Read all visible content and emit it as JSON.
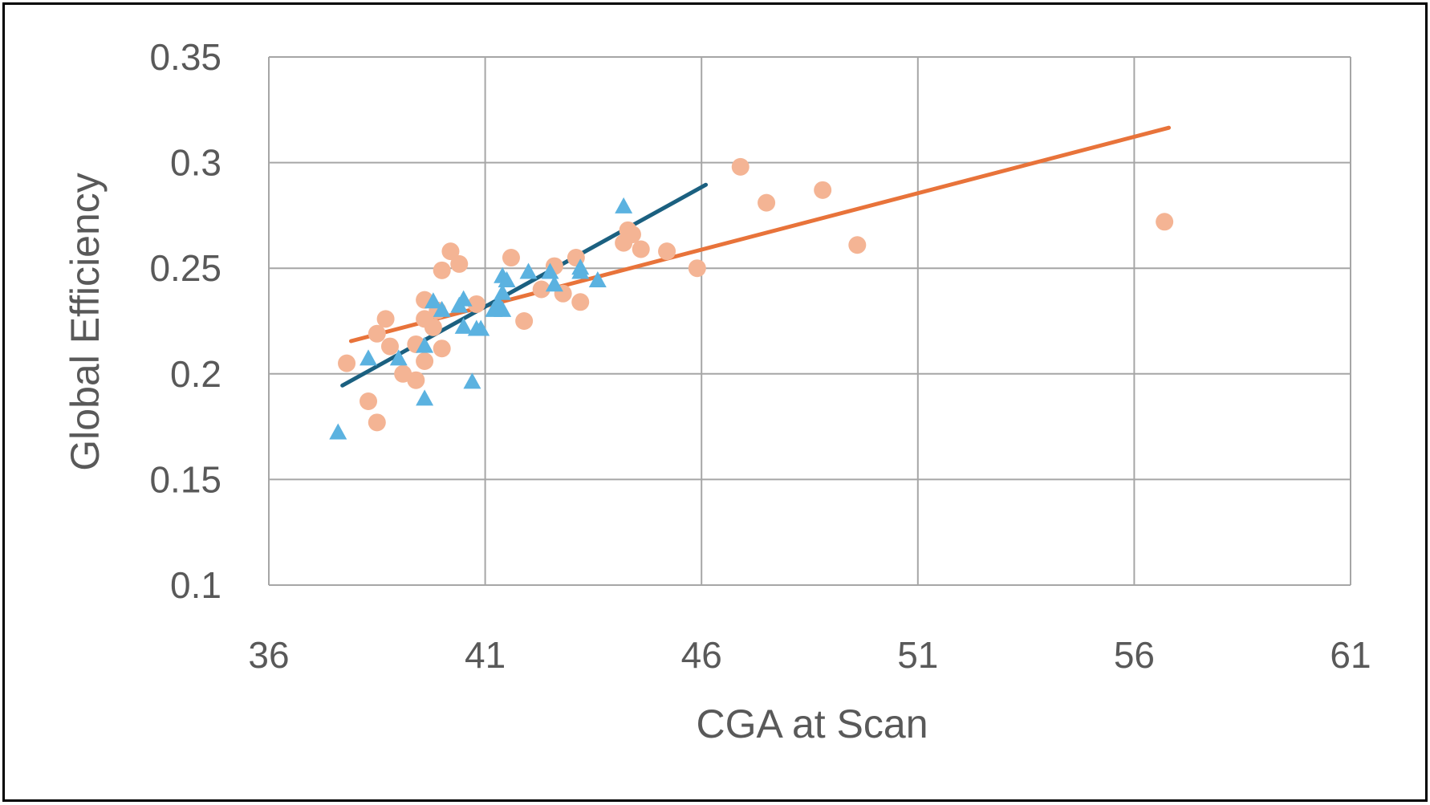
{
  "chart_data": {
    "type": "scatter",
    "xlabel": "CGA at Scan",
    "ylabel": "Global Efficiency",
    "xlim": [
      36,
      61
    ],
    "ylim": [
      0.1,
      0.35
    ],
    "xticks": [
      36,
      41,
      46,
      51,
      56,
      61
    ],
    "yticks": [
      0.1,
      0.15,
      0.2,
      0.25,
      0.3,
      0.35
    ],
    "xtick_labels": [
      "36",
      "41",
      "46",
      "51",
      "56",
      "61"
    ],
    "ytick_labels": [
      "0.1",
      "0.15",
      "0.2",
      "0.25",
      "0.3",
      "0.35"
    ],
    "grid": true,
    "legend": "none",
    "colors": {
      "orange_points": "#F4B494",
      "blue_points": "#5BB2E0",
      "orange_trend": "#E8733A",
      "blue_trend": "#1B6080",
      "grid": "#A6A6A6",
      "text": "#595959"
    },
    "series": [
      {
        "marker": "circle",
        "color": "#F4B494",
        "points": [
          [
            37.8,
            0.205
          ],
          [
            38.3,
            0.187
          ],
          [
            38.5,
            0.219
          ],
          [
            38.7,
            0.226
          ],
          [
            38.5,
            0.177
          ],
          [
            38.8,
            0.213
          ],
          [
            39.1,
            0.2
          ],
          [
            39.4,
            0.214
          ],
          [
            39.4,
            0.197
          ],
          [
            39.6,
            0.226
          ],
          [
            39.6,
            0.235
          ],
          [
            39.6,
            0.206
          ],
          [
            39.8,
            0.222
          ],
          [
            39.9,
            0.23
          ],
          [
            40.0,
            0.212
          ],
          [
            40.0,
            0.249
          ],
          [
            40.2,
            0.258
          ],
          [
            40.4,
            0.252
          ],
          [
            40.8,
            0.233
          ],
          [
            41.6,
            0.255
          ],
          [
            41.9,
            0.225
          ],
          [
            42.3,
            0.24
          ],
          [
            42.6,
            0.251
          ],
          [
            42.8,
            0.238
          ],
          [
            43.1,
            0.255
          ],
          [
            43.2,
            0.234
          ],
          [
            44.2,
            0.262
          ],
          [
            44.3,
            0.268
          ],
          [
            44.4,
            0.266
          ],
          [
            44.6,
            0.259
          ],
          [
            45.2,
            0.258
          ],
          [
            45.9,
            0.25
          ],
          [
            46.9,
            0.298
          ],
          [
            47.5,
            0.281
          ],
          [
            48.8,
            0.287
          ],
          [
            49.6,
            0.261
          ],
          [
            56.7,
            0.272
          ]
        ]
      },
      {
        "marker": "triangle",
        "color": "#5BB2E0",
        "points": [
          [
            37.6,
            0.172
          ],
          [
            38.3,
            0.207
          ],
          [
            39.0,
            0.207
          ],
          [
            39.6,
            0.213
          ],
          [
            39.6,
            0.188
          ],
          [
            39.8,
            0.234
          ],
          [
            40.0,
            0.23
          ],
          [
            40.4,
            0.232
          ],
          [
            40.5,
            0.235
          ],
          [
            40.5,
            0.222
          ],
          [
            40.7,
            0.196
          ],
          [
            40.8,
            0.221
          ],
          [
            40.9,
            0.221
          ],
          [
            41.2,
            0.23
          ],
          [
            41.3,
            0.233
          ],
          [
            41.4,
            0.246
          ],
          [
            41.5,
            0.244
          ],
          [
            41.4,
            0.238
          ],
          [
            41.4,
            0.23
          ],
          [
            42.0,
            0.248
          ],
          [
            42.5,
            0.248
          ],
          [
            42.6,
            0.242
          ],
          [
            43.2,
            0.25
          ],
          [
            43.2,
            0.248
          ],
          [
            43.6,
            0.244
          ],
          [
            44.2,
            0.279
          ]
        ]
      }
    ],
    "trendlines": [
      {
        "color": "#E8733A",
        "x": [
          37.9,
          56.8
        ],
        "y": [
          0.2155,
          0.3165
        ]
      },
      {
        "color": "#1B6080",
        "x": [
          37.7,
          46.1
        ],
        "y": [
          0.1945,
          0.2895
        ]
      }
    ]
  }
}
